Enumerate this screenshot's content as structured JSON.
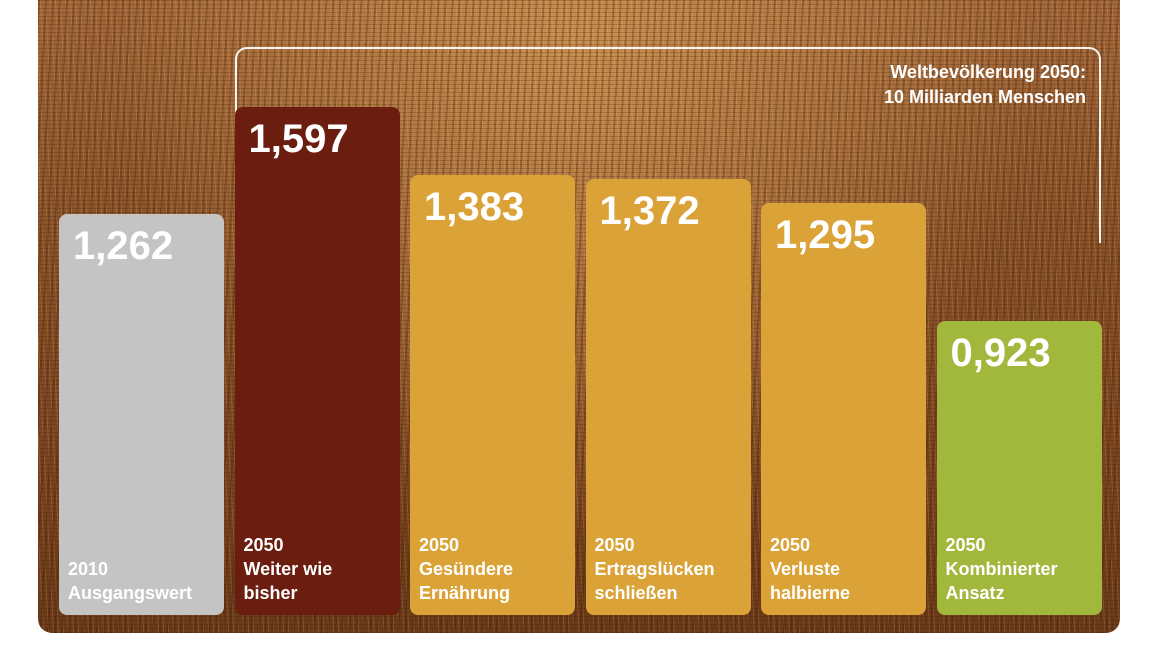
{
  "annotation": {
    "line1": "Weltbevölkerung 2050:",
    "line2": "10 Milliarden Menschen"
  },
  "chart_data": {
    "type": "bar",
    "categories": [
      "2010 Ausgangswert",
      "2050 Weiter wie bisher",
      "2050 Gesündere Ernährung",
      "2050 Ertragslücken schließen",
      "2050 Verluste halbierne",
      "2050 Kombinierter Ansatz"
    ],
    "values": [
      1.262,
      1.597,
      1.383,
      1.372,
      1.295,
      0.923
    ],
    "value_labels": [
      "1,262",
      "1,597",
      "1,383",
      "1,372",
      "1,295",
      "0,923"
    ],
    "label_lines": [
      [
        "2010",
        "Ausgangswert"
      ],
      [
        "2050",
        "Weiter wie",
        "bisher"
      ],
      [
        "2050",
        "Gesündere",
        "Ernährung"
      ],
      [
        "2050",
        "Ertragslücken",
        "schließen"
      ],
      [
        "2050",
        "Verluste",
        "halbierne"
      ],
      [
        "2050",
        "Kombinierter",
        "Ansatz"
      ]
    ],
    "colors": [
      "#c4c4c4",
      "#6b1e0f",
      "#dba337",
      "#dba337",
      "#dba337",
      "#a2b83d"
    ],
    "title": "",
    "xlabel": "",
    "ylabel": ""
  }
}
